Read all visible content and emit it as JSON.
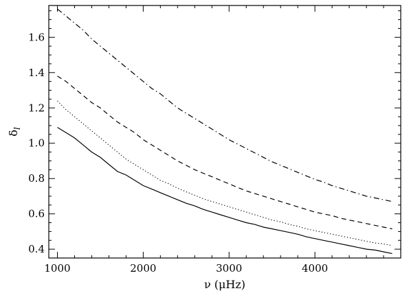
{
  "chart_data": {
    "type": "line",
    "title": "",
    "xlabel": "ν (μHz)",
    "ylabel": "δl",
    "ylabel_main": "δ",
    "ylabel_sub": "l",
    "xlim": [
      900,
      5000
    ],
    "ylim": [
      0.35,
      1.78
    ],
    "x_ticks": [
      1000,
      2000,
      3000,
      4000
    ],
    "x_tick_labels": [
      "1000",
      "2000",
      "3000",
      "4000"
    ],
    "y_ticks": [
      0.4,
      0.6,
      0.8,
      1.0,
      1.2,
      1.4,
      1.6
    ],
    "y_tick_labels": [
      "0.4",
      "0.6",
      "0.8",
      "1.0",
      "1.2",
      "1.4",
      "1.6"
    ],
    "grid": false,
    "legend": "none",
    "series": [
      {
        "style": "solid",
        "x": [
          1000,
          1100,
          1200,
          1300,
          1400,
          1500,
          1600,
          1700,
          1800,
          1900,
          2000,
          2100,
          2200,
          2300,
          2400,
          2500,
          2600,
          2700,
          2800,
          2900,
          3000,
          3100,
          3200,
          3300,
          3400,
          3500,
          3600,
          3700,
          3800,
          3900,
          4000,
          4100,
          4200,
          4300,
          4400,
          4500,
          4600,
          4700,
          4800,
          4900
        ],
        "values": [
          1.09,
          1.06,
          1.03,
          0.99,
          0.95,
          0.92,
          0.88,
          0.84,
          0.82,
          0.79,
          0.76,
          0.74,
          0.72,
          0.7,
          0.68,
          0.66,
          0.645,
          0.625,
          0.61,
          0.595,
          0.58,
          0.565,
          0.55,
          0.54,
          0.525,
          0.515,
          0.505,
          0.495,
          0.485,
          0.47,
          0.46,
          0.45,
          0.44,
          0.43,
          0.42,
          0.41,
          0.4,
          0.395,
          0.385,
          0.375
        ]
      },
      {
        "style": "dotted",
        "x": [
          1000,
          1100,
          1200,
          1300,
          1400,
          1500,
          1600,
          1700,
          1800,
          1900,
          2000,
          2100,
          2200,
          2300,
          2400,
          2500,
          2600,
          2700,
          2800,
          2900,
          3000,
          3100,
          3200,
          3300,
          3400,
          3500,
          3600,
          3700,
          3800,
          3900,
          4000,
          4100,
          4200,
          4300,
          4400,
          4500,
          4600,
          4700,
          4800,
          4900
        ],
        "values": [
          1.24,
          1.19,
          1.15,
          1.11,
          1.07,
          1.03,
          0.99,
          0.95,
          0.91,
          0.88,
          0.85,
          0.82,
          0.79,
          0.77,
          0.745,
          0.725,
          0.705,
          0.685,
          0.67,
          0.655,
          0.64,
          0.625,
          0.61,
          0.595,
          0.58,
          0.565,
          0.555,
          0.54,
          0.53,
          0.515,
          0.505,
          0.495,
          0.485,
          0.475,
          0.465,
          0.455,
          0.445,
          0.435,
          0.43,
          0.42
        ]
      },
      {
        "style": "dashed",
        "x": [
          1000,
          1100,
          1200,
          1300,
          1400,
          1500,
          1600,
          1700,
          1800,
          1900,
          2000,
          2100,
          2200,
          2300,
          2400,
          2500,
          2600,
          2700,
          2800,
          2900,
          3000,
          3100,
          3200,
          3300,
          3400,
          3500,
          3600,
          3700,
          3800,
          3900,
          4000,
          4100,
          4200,
          4300,
          4400,
          4500,
          4600,
          4700,
          4800,
          4900
        ],
        "values": [
          1.38,
          1.35,
          1.31,
          1.27,
          1.23,
          1.2,
          1.16,
          1.12,
          1.09,
          1.06,
          1.02,
          0.99,
          0.96,
          0.93,
          0.9,
          0.875,
          0.85,
          0.83,
          0.81,
          0.79,
          0.77,
          0.75,
          0.73,
          0.715,
          0.7,
          0.685,
          0.67,
          0.655,
          0.64,
          0.625,
          0.61,
          0.6,
          0.59,
          0.575,
          0.565,
          0.555,
          0.545,
          0.535,
          0.525,
          0.515
        ]
      },
      {
        "style": "dashdot",
        "x": [
          1000,
          1100,
          1200,
          1300,
          1400,
          1500,
          1600,
          1700,
          1800,
          1900,
          2000,
          2100,
          2200,
          2300,
          2400,
          2500,
          2600,
          2700,
          2800,
          2900,
          3000,
          3100,
          3200,
          3300,
          3400,
          3500,
          3600,
          3700,
          3800,
          3900,
          4000,
          4100,
          4200,
          4300,
          4400,
          4500,
          4600,
          4700,
          4800,
          4900
        ],
        "values": [
          1.76,
          1.72,
          1.68,
          1.64,
          1.59,
          1.55,
          1.51,
          1.47,
          1.43,
          1.39,
          1.35,
          1.31,
          1.28,
          1.24,
          1.2,
          1.17,
          1.14,
          1.11,
          1.08,
          1.05,
          1.02,
          0.995,
          0.97,
          0.945,
          0.92,
          0.895,
          0.875,
          0.855,
          0.835,
          0.815,
          0.795,
          0.78,
          0.76,
          0.745,
          0.73,
          0.715,
          0.7,
          0.69,
          0.68,
          0.67
        ]
      }
    ]
  }
}
